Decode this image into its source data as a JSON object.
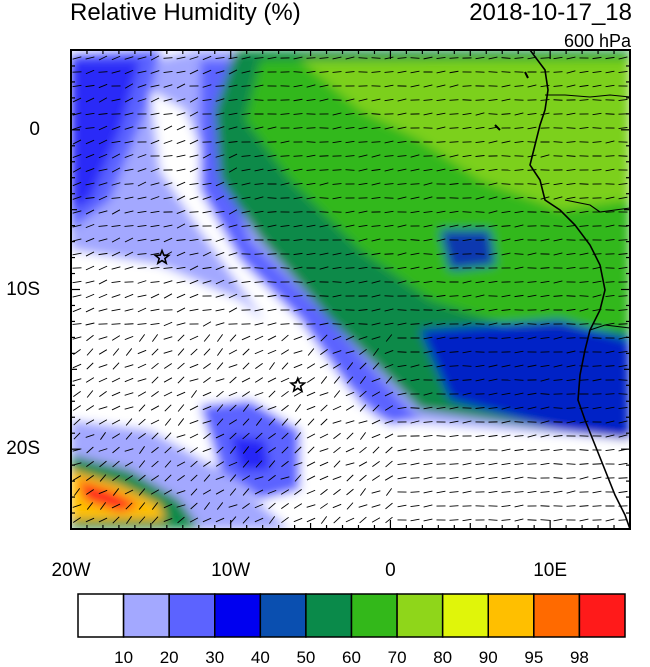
{
  "header": {
    "variable": "Relative Humidity (%)",
    "datetime": "2018-10-17_18",
    "level": "600 hPa"
  },
  "axes": {
    "x_ticks": [
      {
        "value": -20,
        "label": "20W"
      },
      {
        "value": -10,
        "label": "10W"
      },
      {
        "value": 0,
        "label": "0"
      },
      {
        "value": 10,
        "label": "10E"
      }
    ],
    "y_ticks": [
      {
        "value": 0,
        "label": "0"
      },
      {
        "value": -10,
        "label": "10S"
      },
      {
        "value": -20,
        "label": "20S"
      }
    ],
    "lon_range": [
      -20,
      15
    ],
    "lat_range": [
      -25,
      5
    ]
  },
  "markers": [
    {
      "name": "star",
      "lon": -14.3,
      "lat": -8.0
    },
    {
      "name": "star",
      "lon": -5.8,
      "lat": -16.0
    }
  ],
  "colorbar": {
    "levels": [
      "10",
      "20",
      "30",
      "40",
      "50",
      "60",
      "70",
      "80",
      "90",
      "95",
      "98"
    ],
    "colors": [
      "#ffffff",
      "#a3a8ff",
      "#5c63ff",
      "#0000f0",
      "#0a4fb0",
      "#0a8a4a",
      "#33b81a",
      "#8fd61a",
      "#e0f50a",
      "#ffbf00",
      "#ff6a00",
      "#ff1a1a"
    ]
  },
  "colors": {
    "land_outline": "#000000",
    "wind_barb": "#000000"
  }
}
